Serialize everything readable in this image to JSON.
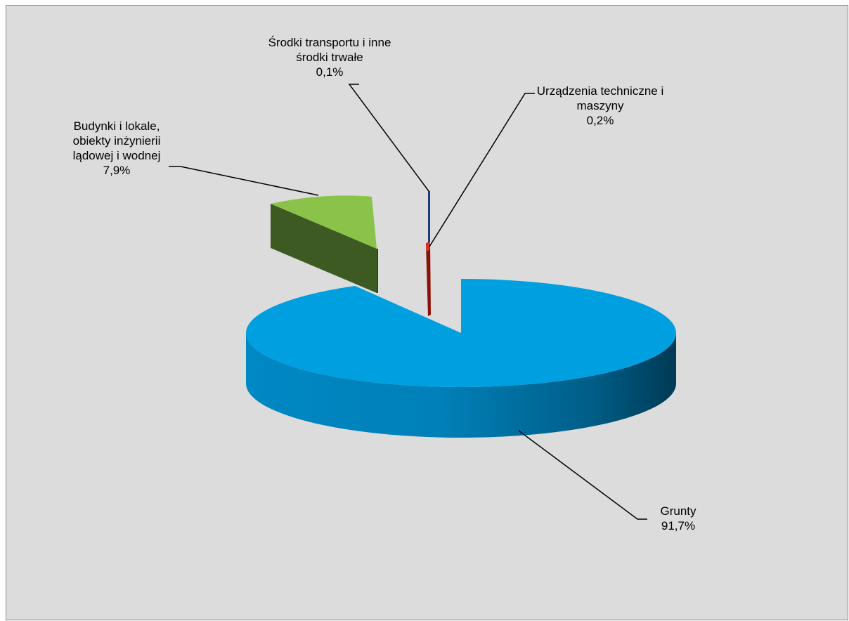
{
  "chart_data": {
    "type": "pie",
    "style": "3d-exploded",
    "slices": [
      {
        "key": "grunty",
        "label_lines": [
          "Grunty"
        ],
        "value": 91.7,
        "value_text": "91,7%",
        "color": "#00a0e0",
        "side_color": "#007ab0",
        "dark_color": "#004660"
      },
      {
        "key": "budynki",
        "label_lines": [
          "Budynki i lokale,",
          "obiekty inżynierii",
          "lądowej i wodnej"
        ],
        "value": 7.9,
        "value_text": "7,9%",
        "color": "#8bc34a",
        "side_color": "#3d5a22",
        "dark_color": "#2f4a1a"
      },
      {
        "key": "srodki",
        "label_lines": [
          "Środki transportu i inne",
          "środki trwałe"
        ],
        "value": 0.1,
        "value_text": "0,1%",
        "color": "#1f3d7a",
        "side_color": "#142a56",
        "dark_color": "#0e1e40"
      },
      {
        "key": "urzadzenia",
        "label_lines": [
          "Urządzenia techniczne i",
          "maszyny"
        ],
        "value": 0.2,
        "value_text": "0,2%",
        "color": "#e03020",
        "side_color": "#8a1008",
        "dark_color": "#600a04"
      }
    ],
    "background": "#dcdcdc"
  }
}
